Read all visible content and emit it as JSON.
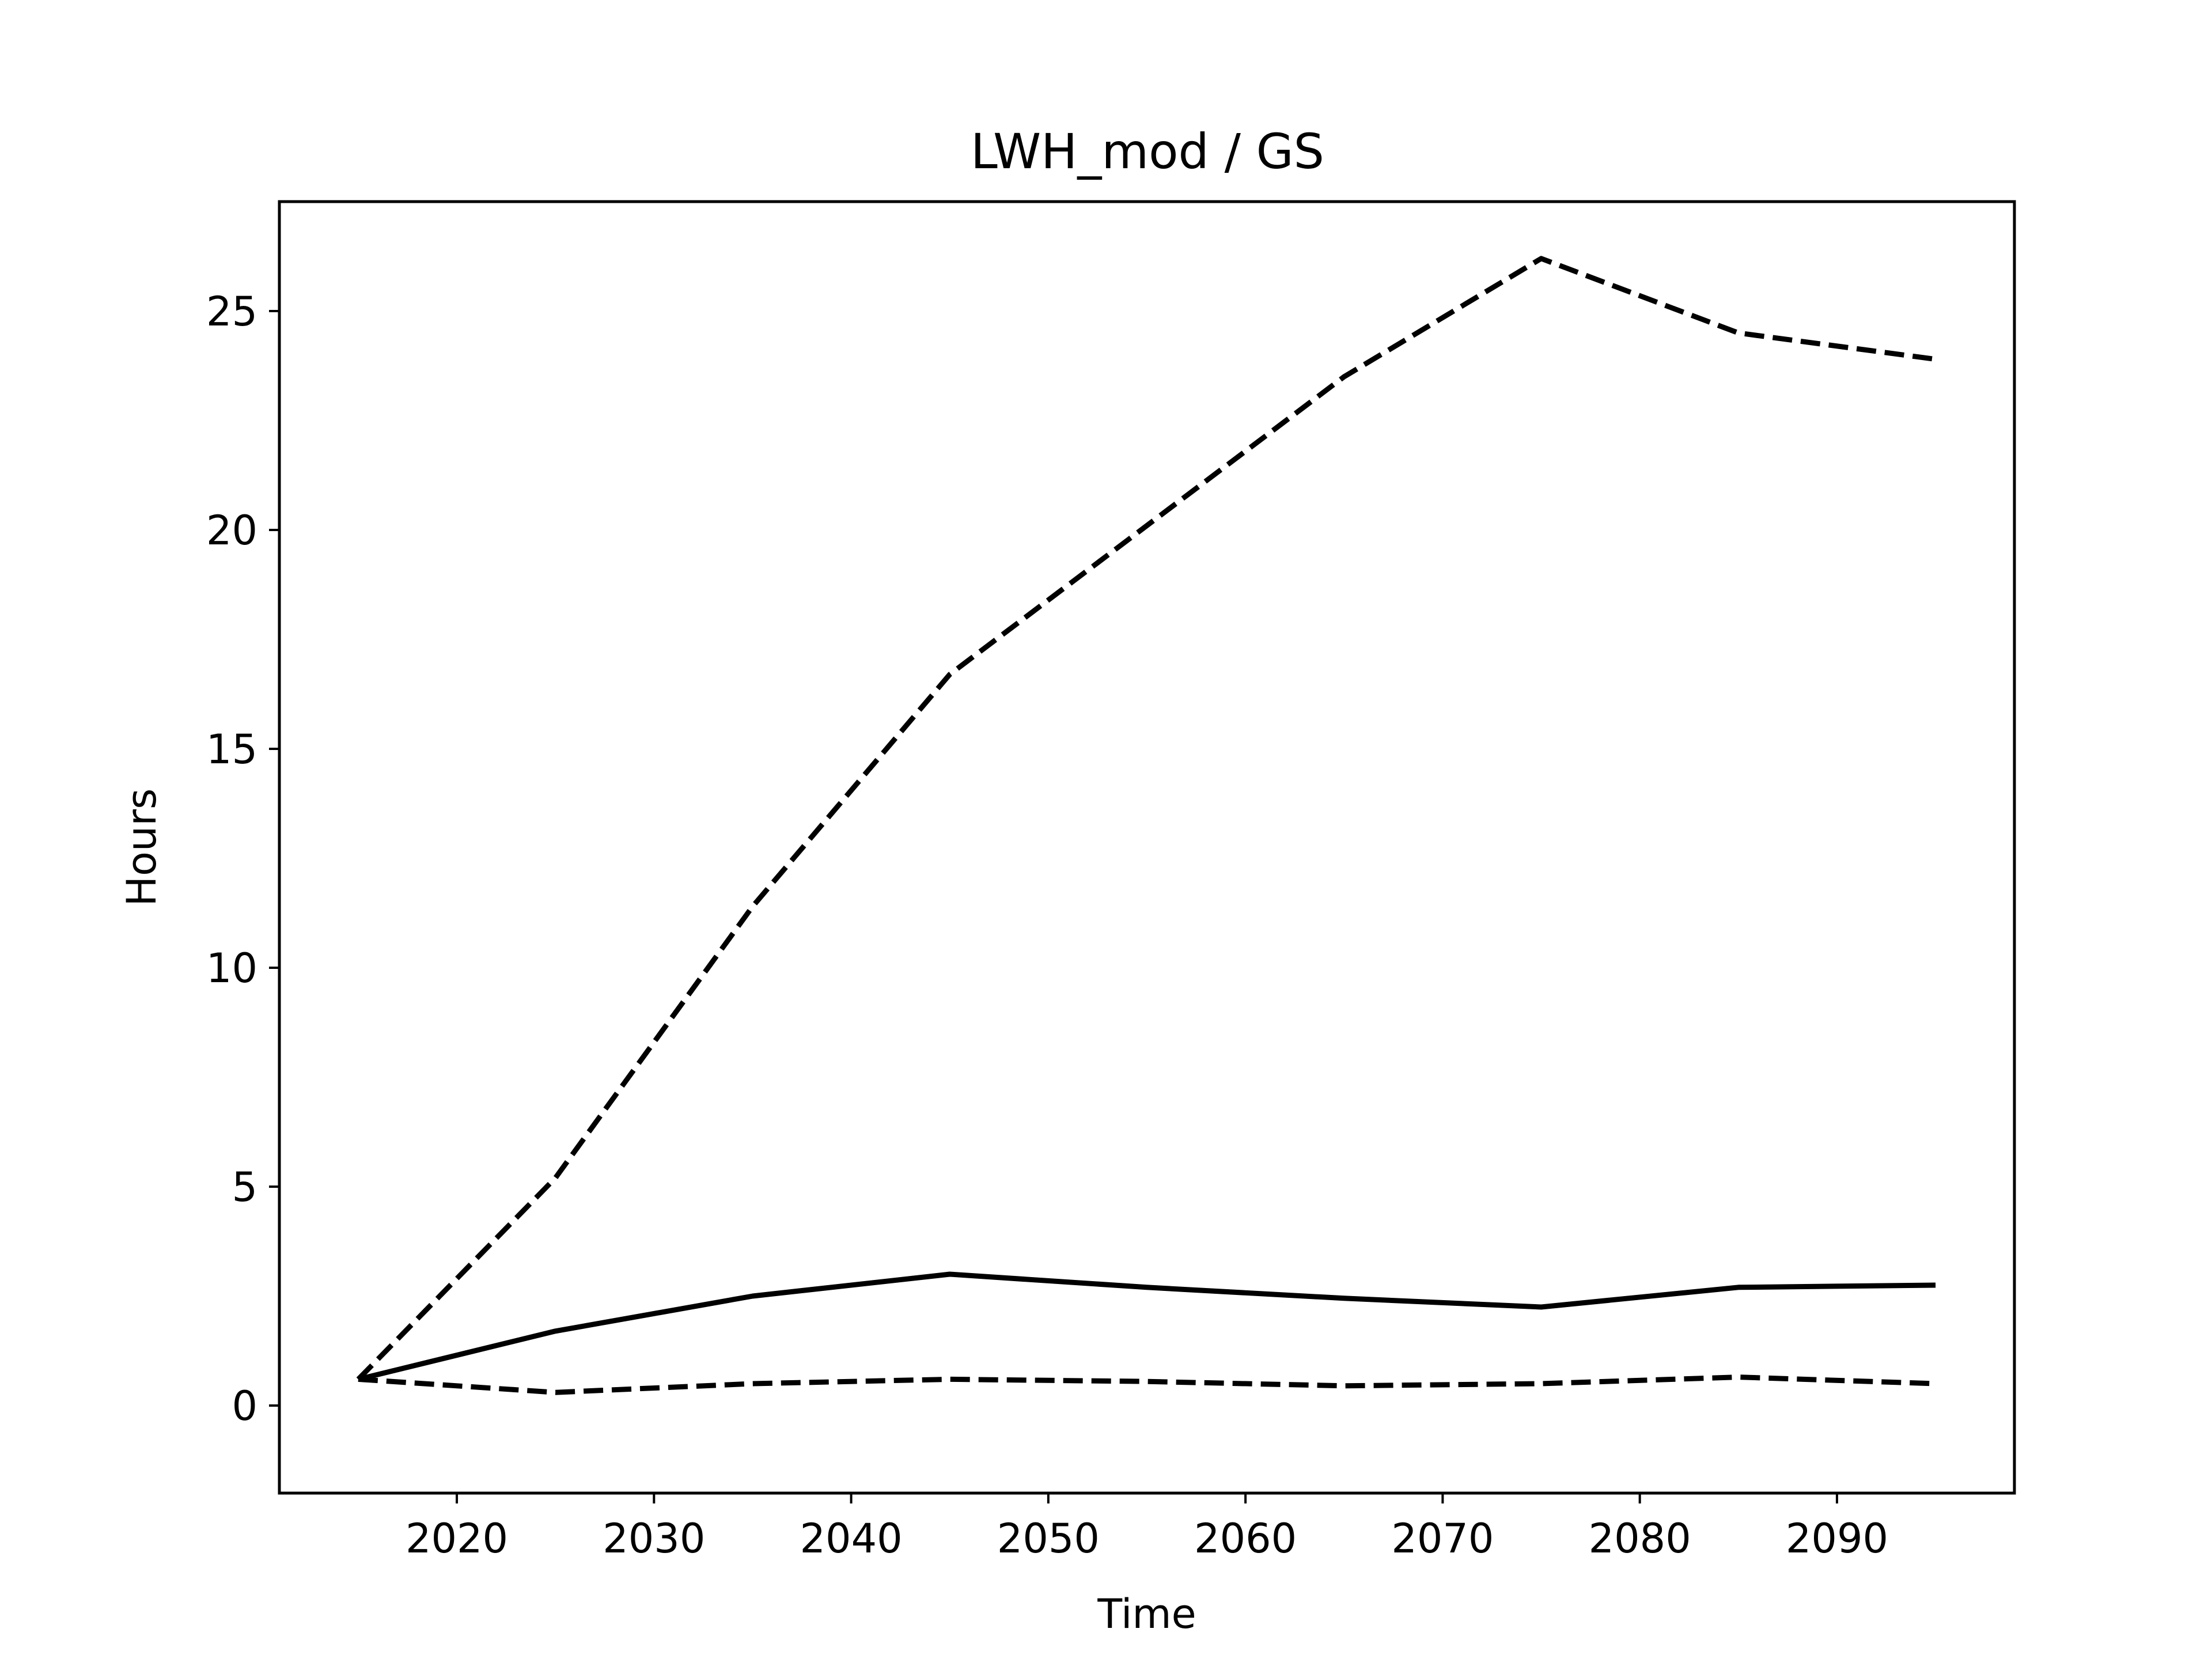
{
  "chart_data": {
    "type": "line",
    "title": "LWH_mod / GS",
    "xlabel": "Time",
    "ylabel": "Hours",
    "x": [
      2015,
      2025,
      2035,
      2045,
      2055,
      2065,
      2075,
      2085,
      2095
    ],
    "xlim": [
      2011,
      2099
    ],
    "ylim": [
      -2,
      27.5
    ],
    "xticks": [
      2020,
      2030,
      2040,
      2050,
      2060,
      2070,
      2080,
      2090
    ],
    "yticks": [
      0,
      5,
      10,
      15,
      20,
      25
    ],
    "grid": false,
    "legend": "none",
    "series": [
      {
        "style": "solid",
        "color": "#000000",
        "values": [
          0.6,
          1.7,
          2.5,
          3.0,
          2.7,
          2.45,
          2.25,
          2.7,
          2.75
        ]
      },
      {
        "style": "dashed",
        "color": "#000000",
        "values": [
          0.6,
          5.2,
          11.4,
          16.7,
          20.1,
          23.5,
          26.2,
          24.5,
          23.9
        ]
      },
      {
        "style": "dashed",
        "color": "#000000",
        "values": [
          0.6,
          0.3,
          0.5,
          0.6,
          0.55,
          0.45,
          0.5,
          0.65,
          0.5
        ]
      }
    ]
  }
}
